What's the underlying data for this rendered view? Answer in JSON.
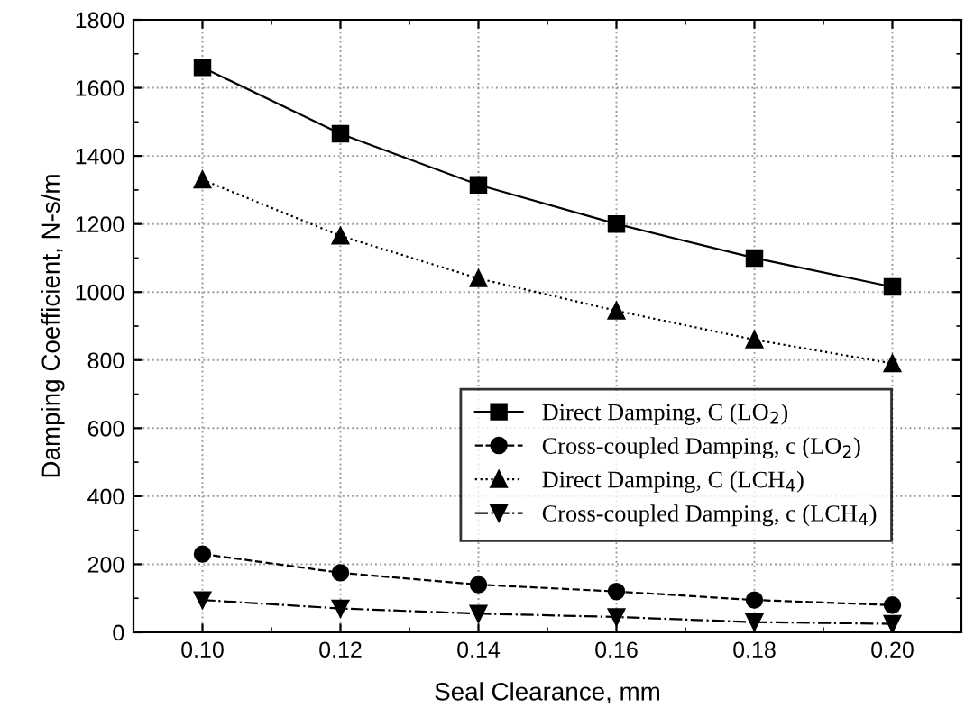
{
  "chart_data": {
    "type": "line",
    "xlabel": "Seal Clearance, mm",
    "ylabel": "Damping Coefficient, N-s/m",
    "x": [
      0.1,
      0.12,
      0.14,
      0.16,
      0.18,
      0.2
    ],
    "xlim": [
      0.09,
      0.21
    ],
    "xticks": [
      {
        "value": 0.1,
        "label": "0.10"
      },
      {
        "value": 0.12,
        "label": "0.12"
      },
      {
        "value": 0.14,
        "label": "0.14"
      },
      {
        "value": 0.16,
        "label": "0.16"
      },
      {
        "value": 0.18,
        "label": "0.18"
      },
      {
        "value": 0.2,
        "label": "0.20"
      }
    ],
    "ylim": [
      0,
      1800
    ],
    "yticks": [
      0,
      200,
      400,
      600,
      800,
      1000,
      1200,
      1400,
      1600,
      1800
    ],
    "grid": true,
    "legend": "lower right",
    "series": [
      {
        "name": "Direct Damping, C (LO$_{2}$)",
        "color": "#000000",
        "marker": "square",
        "line_style": "solid",
        "values": [
          1660,
          1465,
          1315,
          1200,
          1100,
          1015
        ]
      },
      {
        "name": "Cross-coupled Damping, c (LO$_{2}$)",
        "color": "#000000",
        "marker": "circle",
        "line_style": "dashed",
        "values": [
          230,
          175,
          140,
          120,
          95,
          80
        ]
      },
      {
        "name": "Direct Damping, C (LCH$_{4}$)",
        "color": "#000000",
        "marker": "triangle",
        "line_style": "dotted",
        "values": [
          1330,
          1165,
          1040,
          945,
          860,
          790
        ]
      },
      {
        "name": "Cross-coupled Damping, c (LCH$_{4}$)",
        "color": "#000000",
        "marker": "triangle_down",
        "line_style": "dashdot",
        "values": [
          95,
          70,
          55,
          45,
          30,
          25
        ]
      }
    ]
  }
}
